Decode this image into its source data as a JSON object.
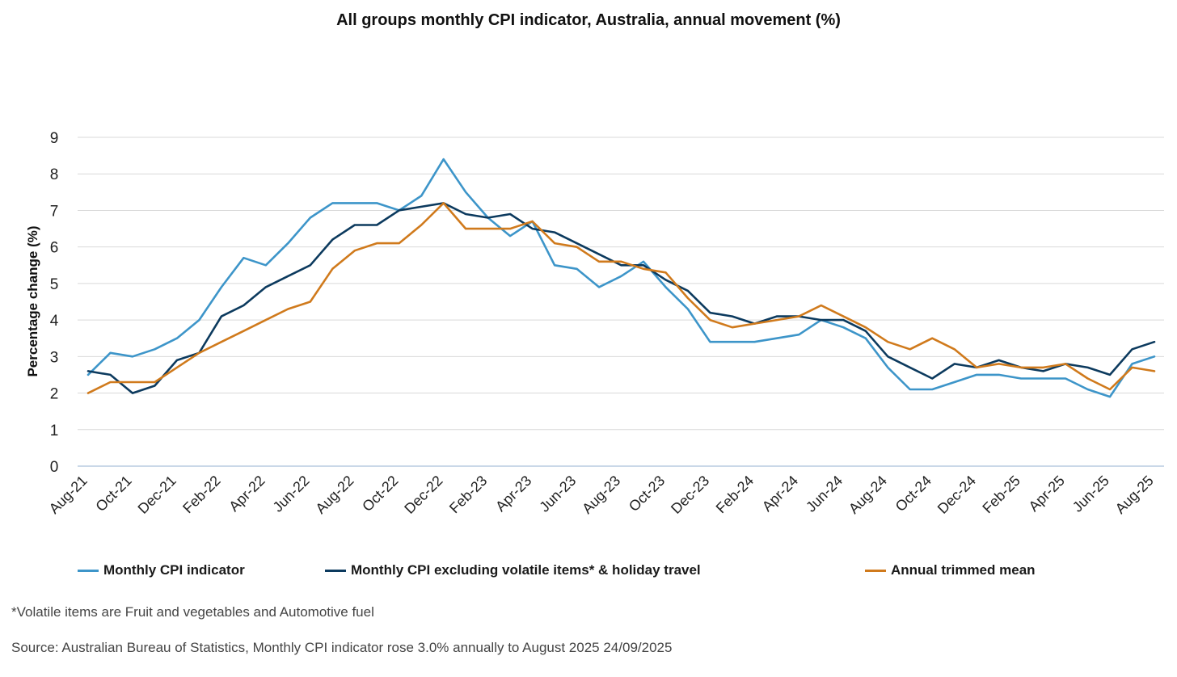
{
  "chart_data": {
    "type": "line",
    "title": "All groups monthly CPI indicator, Australia, annual movement (%)",
    "ylabel": "Percentage change (%)",
    "xlabel": "",
    "ylim": [
      0,
      9
    ],
    "yticks": [
      "0",
      "1",
      "2",
      "3",
      "4",
      "5",
      "6",
      "7",
      "8",
      "9"
    ],
    "grid": true,
    "legend_position": "bottom",
    "x": [
      "Aug-21",
      "Sep-21",
      "Oct-21",
      "Nov-21",
      "Dec-21",
      "Jan-22",
      "Feb-22",
      "Mar-22",
      "Apr-22",
      "May-22",
      "Jun-22",
      "Jul-22",
      "Aug-22",
      "Sep-22",
      "Oct-22",
      "Nov-22",
      "Dec-22",
      "Jan-23",
      "Feb-23",
      "Mar-23",
      "Apr-23",
      "May-23",
      "Jun-23",
      "Jul-23",
      "Aug-23",
      "Sep-23",
      "Oct-23",
      "Nov-23",
      "Dec-23",
      "Jan-24",
      "Feb-24",
      "Mar-24",
      "Apr-24",
      "May-24",
      "Jun-24",
      "Jul-24",
      "Aug-24",
      "Sep-24",
      "Oct-24",
      "Nov-24",
      "Dec-24",
      "Jan-25",
      "Feb-25",
      "Mar-25",
      "Apr-25",
      "May-25",
      "Jun-25",
      "Jul-25",
      "Aug-25"
    ],
    "xtick_labels": [
      "Aug-21",
      "Oct-21",
      "Dec-21",
      "Feb-22",
      "Apr-22",
      "Jun-22",
      "Aug-22",
      "Oct-22",
      "Dec-22",
      "Feb-23",
      "Apr-23",
      "Jun-23",
      "Aug-23",
      "Oct-23",
      "Dec-23",
      "Feb-24",
      "Apr-24",
      "Jun-24",
      "Aug-24",
      "Oct-24",
      "Dec-24",
      "Feb-25",
      "Apr-25",
      "Jun-25",
      "Aug-25"
    ],
    "series": [
      {
        "name": "Monthly CPI indicator",
        "color": "#3d95c9",
        "values": [
          2.5,
          3.1,
          3.0,
          3.2,
          3.5,
          4.0,
          4.9,
          5.7,
          5.5,
          6.1,
          6.8,
          7.2,
          7.2,
          7.2,
          7.0,
          7.4,
          8.4,
          7.5,
          6.8,
          6.3,
          6.7,
          5.5,
          5.4,
          4.9,
          5.2,
          5.6,
          4.9,
          4.3,
          3.4,
          3.4,
          3.4,
          3.5,
          3.6,
          4.0,
          3.8,
          3.5,
          2.7,
          2.1,
          2.1,
          2.3,
          2.5,
          2.5,
          2.4,
          2.4,
          2.4,
          2.1,
          1.9,
          2.8,
          3.0
        ]
      },
      {
        "name": "Monthly CPI excluding volatile items* & holiday travel",
        "color": "#0c3a5e",
        "values": [
          2.6,
          2.5,
          2.0,
          2.2,
          2.9,
          3.1,
          4.1,
          4.4,
          4.9,
          5.2,
          5.5,
          6.2,
          6.6,
          6.6,
          7.0,
          7.1,
          7.2,
          6.9,
          6.8,
          6.9,
          6.5,
          6.4,
          6.1,
          5.8,
          5.5,
          5.5,
          5.1,
          4.8,
          4.2,
          4.1,
          3.9,
          4.1,
          4.1,
          4.0,
          4.0,
          3.7,
          3.0,
          2.7,
          2.4,
          2.8,
          2.7,
          2.9,
          2.7,
          2.6,
          2.8,
          2.7,
          2.5,
          3.2,
          3.4
        ]
      },
      {
        "name": "Annual trimmed mean",
        "color": "#d07a1c",
        "values": [
          2.0,
          2.3,
          2.3,
          2.3,
          2.7,
          3.1,
          3.4,
          3.7,
          4.0,
          4.3,
          4.5,
          5.4,
          5.9,
          6.1,
          6.1,
          6.6,
          7.2,
          6.5,
          6.5,
          6.5,
          6.7,
          6.1,
          6.0,
          5.6,
          5.6,
          5.4,
          5.3,
          4.6,
          4.0,
          3.8,
          3.9,
          4.0,
          4.1,
          4.4,
          4.1,
          3.8,
          3.4,
          3.2,
          3.5,
          3.2,
          2.7,
          2.8,
          2.7,
          2.7,
          2.8,
          2.4,
          2.1,
          2.7,
          2.6
        ]
      }
    ]
  },
  "note": "*Volatile items are Fruit and vegetables and Automotive fuel",
  "source": "Source: Australian Bureau of Statistics, Monthly CPI indicator rose 3.0% annually to August 2025 24/09/2025"
}
